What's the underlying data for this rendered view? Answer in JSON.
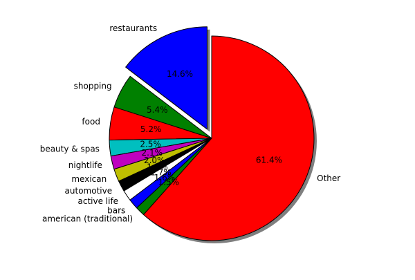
{
  "chart_data": {
    "type": "pie",
    "title": "",
    "start_angle_deg": 90,
    "direction": "counterclockwise",
    "shadow": true,
    "slices": [
      {
        "label": "restaurants",
        "value": 14.6,
        "pct_label": "14.6%",
        "color": "#0000ff",
        "explode": 0.1
      },
      {
        "label": "shopping",
        "value": 5.4,
        "pct_label": "5.4%",
        "color": "#008000",
        "explode": 0
      },
      {
        "label": "food",
        "value": 5.2,
        "pct_label": "5.2%",
        "color": "#ff0000",
        "explode": 0
      },
      {
        "label": "beauty & spas",
        "value": 2.5,
        "pct_label": "2.5%",
        "color": "#00bfbf",
        "explode": 0
      },
      {
        "label": "nightlife",
        "value": 2.1,
        "pct_label": "2.1%",
        "color": "#bf00bf",
        "explode": 0
      },
      {
        "label": "mexican",
        "value": 2.0,
        "pct_label": "2.0%",
        "color": "#bfbf00",
        "explode": 0
      },
      {
        "label": "automotive",
        "value": 1.7,
        "pct_label": "1.7%",
        "color": "#000000",
        "explode": 0
      },
      {
        "label": "active life",
        "value": 1.7,
        "pct_label": "1.7%",
        "color": "#ffffff",
        "explode": 0
      },
      {
        "label": "bars",
        "value": 1.6,
        "pct_label": "1.6%",
        "color": "#0000ff",
        "explode": 0
      },
      {
        "label": "american (traditional)",
        "value": 1.5,
        "pct_label": "1.5%",
        "color": "#008000",
        "explode": 0
      },
      {
        "label": "Other",
        "value": 61.4,
        "pct_label": "61.4%",
        "color": "#ff0000",
        "explode": 0
      }
    ]
  }
}
